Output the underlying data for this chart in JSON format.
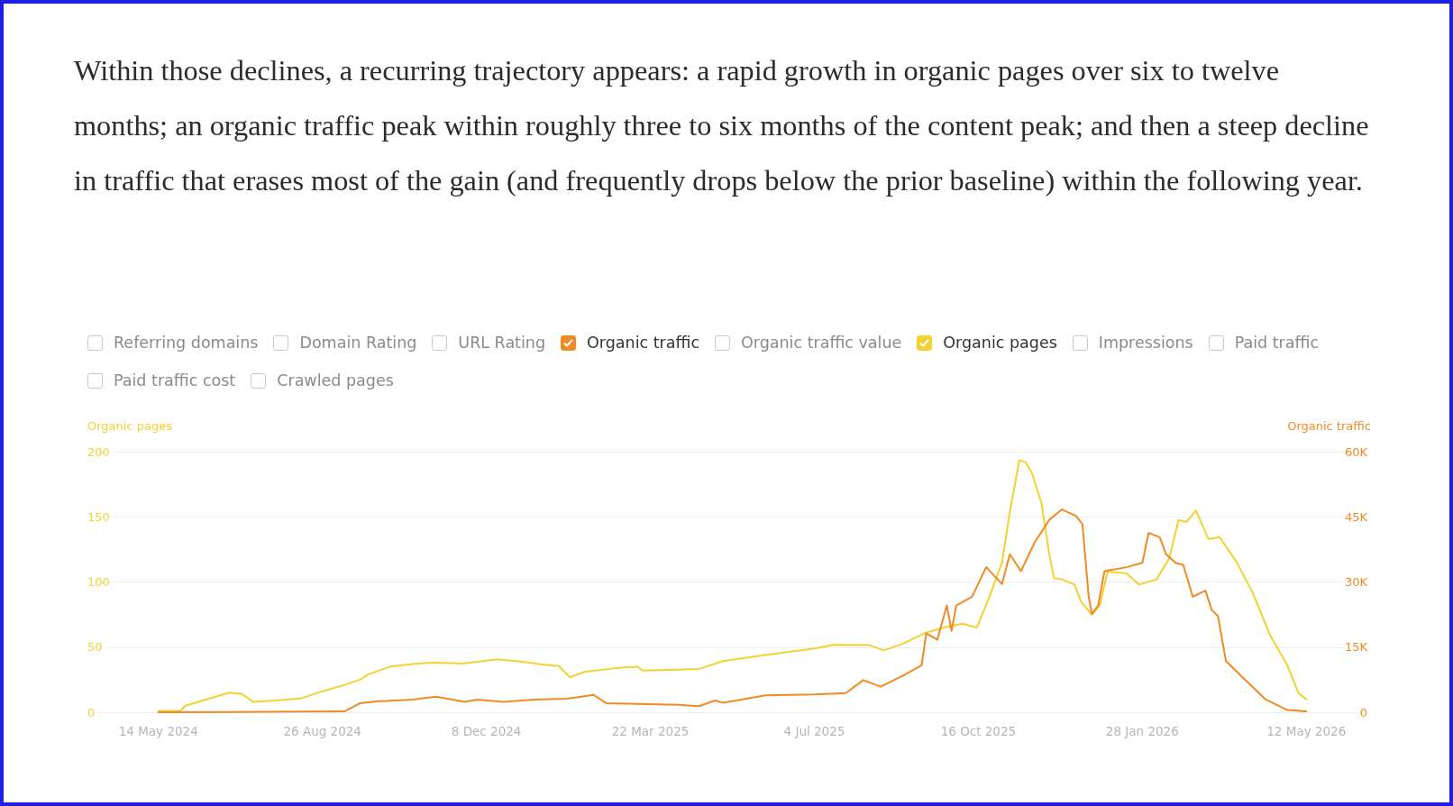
{
  "chart_data": {
    "type": "line",
    "title": "Within those declines, a recurring trajectory appears: a rapid growth in organic pages over six to twelve months; an organic traffic peak within roughly three to six months of the content peak; and then a steep decline in traffic that erases most of the gain (and frequently drops below the prior baseline) within the following year.",
    "annotations": [
      "Referring domains",
      "Domain Rating",
      "URL Rating",
      "Organic traffic value",
      "Impressions",
      "Paid traffic",
      "Paid traffic cost",
      "Crawled pages"
    ],
    "ylabel": "Organic pages",
    "y2label": "Organic traffic",
    "xlim": [
      "2024-03-30",
      "2026-06-22"
    ],
    "xticks": [
      {
        "value": "2024-05-14",
        "label": "14 May 2024"
      },
      {
        "value": "2024-08-26",
        "label": "26 Aug 2024"
      },
      {
        "value": "2024-12-08",
        "label": "8 Dec 2024"
      },
      {
        "value": "2025-03-22",
        "label": "22 Mar 2025"
      },
      {
        "value": "2025-07-04",
        "label": "4 Jul 2025"
      },
      {
        "value": "2025-10-16",
        "label": "16 Oct 2025"
      },
      {
        "value": "2026-01-28",
        "label": "28 Jan 2026"
      },
      {
        "value": "2026-05-12",
        "label": "12 May 2026"
      }
    ],
    "ylim": [
      0,
      200
    ],
    "yticks": [
      0,
      50,
      100,
      150,
      200
    ],
    "y2lim": [
      0,
      60000
    ],
    "y2ticks": [
      0,
      {
        "value": 15000,
        "label": "15K"
      },
      {
        "value": 30000,
        "label": "30K"
      },
      {
        "value": 45000,
        "label": "45K"
      },
      {
        "value": 60000,
        "label": "60K"
      }
    ],
    "grid": "y",
    "legend": "top",
    "marker": "none",
    "series": [
      {
        "name": "Organic traffic",
        "color": "#f08a24",
        "axis": "y2",
        "x": [
          "2024-05-14",
          "2024-09-09",
          "2024-09-19",
          "2024-09-29",
          "2024-10-22",
          "2024-11-06",
          "2024-11-24",
          "2024-12-02",
          "2024-12-19",
          "2025-01-07",
          "2025-01-28",
          "2025-02-14",
          "2025-02-22",
          "2025-03-14",
          "2025-04-09",
          "2025-04-22",
          "2025-05-02",
          "2025-05-07",
          "2025-06-03",
          "2025-07-04",
          "2025-07-24",
          "2025-08-04",
          "2025-08-15",
          "2025-08-29",
          "2025-09-10",
          "2025-09-13",
          "2025-09-20",
          "2025-09-26",
          "2025-09-29",
          "2025-10-02",
          "2025-10-12",
          "2025-10-21",
          "2025-10-31",
          "2025-11-05",
          "2025-11-12",
          "2025-11-21",
          "2025-11-30",
          "2025-12-08",
          "2025-12-17",
          "2025-12-21",
          "2025-12-25",
          "2025-12-27",
          "2025-12-31",
          "2026-01-04",
          "2026-01-18",
          "2026-01-28",
          "2026-02-01",
          "2026-02-08",
          "2026-02-12",
          "2026-02-18",
          "2026-02-23",
          "2026-03-01",
          "2026-03-09",
          "2026-03-13",
          "2026-03-17",
          "2026-03-22",
          "2026-04-02",
          "2026-04-16",
          "2026-04-30",
          "2026-05-12"
        ],
        "values": [
          0,
          200,
          2100,
          2500,
          2900,
          3600,
          2400,
          2900,
          2400,
          2900,
          3100,
          4000,
          2100,
          1900,
          1700,
          1400,
          2700,
          2200,
          3900,
          4100,
          4400,
          7400,
          5900,
          8400,
          10800,
          18200,
          16700,
          24600,
          18700,
          24600,
          26600,
          33400,
          29500,
          36400,
          32500,
          39300,
          44300,
          46700,
          45200,
          43300,
          26600,
          22600,
          24600,
          32500,
          33400,
          34400,
          41300,
          40300,
          36400,
          34400,
          33900,
          26600,
          28000,
          23600,
          22100,
          11800,
          7900,
          3000,
          500,
          200
        ]
      },
      {
        "name": "Organic pages",
        "color": "#f2d230",
        "x": [
          "2024-05-14",
          "2024-05-28",
          "2024-05-31",
          "2024-06-14",
          "2024-06-28",
          "2024-07-06",
          "2024-07-13",
          "2024-07-27",
          "2024-08-12",
          "2024-08-26",
          "2024-09-09",
          "2024-09-19",
          "2024-09-24",
          "2024-10-08",
          "2024-10-22",
          "2024-11-04",
          "2024-11-24",
          "2024-12-15",
          "2024-12-31",
          "2025-01-13",
          "2025-01-23",
          "2025-01-30",
          "2025-02-08",
          "2025-03-01",
          "2025-03-14",
          "2025-03-17",
          "2025-04-09",
          "2025-04-22",
          "2025-05-07",
          "2025-06-03",
          "2025-07-04",
          "2025-07-16",
          "2025-08-08",
          "2025-08-17",
          "2025-08-29",
          "2025-09-12",
          "2025-09-26",
          "2025-10-06",
          "2025-10-15",
          "2025-10-23",
          "2025-10-31",
          "2025-11-05",
          "2025-11-11",
          "2025-11-15",
          "2025-11-19",
          "2025-11-25",
          "2025-11-30",
          "2025-12-03",
          "2025-12-08",
          "2025-12-16",
          "2025-12-20",
          "2025-12-27",
          "2026-01-01",
          "2026-01-06",
          "2026-01-18",
          "2026-01-26",
          "2026-02-06",
          "2026-02-14",
          "2026-02-20",
          "2026-02-25",
          "2026-03-03",
          "2026-03-11",
          "2026-03-18",
          "2026-03-29",
          "2026-04-08",
          "2026-04-19",
          "2026-04-30",
          "2026-05-07",
          "2026-05-12"
        ],
        "values": [
          1,
          1,
          5,
          10,
          15,
          14,
          8,
          9,
          10.5,
          16,
          21,
          25,
          29,
          35,
          37,
          38,
          37.5,
          40.6,
          38.7,
          36.5,
          35.5,
          26.7,
          31,
          34,
          35,
          32,
          32.7,
          33.3,
          39.3,
          44,
          49,
          51.8,
          51.5,
          47.5,
          52.5,
          60.7,
          65.6,
          68,
          65,
          88.5,
          114.8,
          154,
          193.4,
          191.8,
          183.6,
          160.7,
          121,
          103,
          102,
          98,
          85,
          74.8,
          82,
          108,
          106.6,
          98,
          102,
          118,
          147.5,
          146,
          154.8,
          132.8,
          134.4,
          114.8,
          91.8,
          59,
          36,
          14.8,
          9.8
        ]
      }
    ]
  }
}
